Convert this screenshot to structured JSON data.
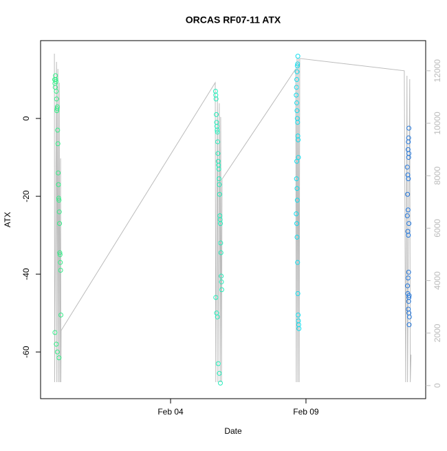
{
  "chart_data": {
    "type": "scatter",
    "title": "ORCAS RF07-11 ATX",
    "xlabel": "Date",
    "ylabel": "ATX",
    "xlim": [
      -0.8,
      13.42
    ],
    "ylim": [
      -72,
      20
    ],
    "y2lim": [
      -500,
      13150
    ],
    "xticks": [
      {
        "value": 4,
        "label": "Feb 04"
      },
      {
        "value": 9,
        "label": "Feb 09"
      }
    ],
    "yticks": [
      -60,
      -40,
      -20,
      0
    ],
    "y2ticks": [
      0,
      2000,
      4000,
      6000,
      8000,
      10000,
      12000
    ],
    "series": [
      {
        "color": "#33ee88",
        "x": [
          -0.28,
          -0.27,
          -0.26,
          -0.25,
          -0.24,
          -0.23,
          -0.22,
          -0.21,
          -0.2,
          -0.19,
          -0.18,
          -0.17,
          -0.16,
          -0.15,
          -0.14,
          -0.13,
          -0.12,
          -0.11,
          -0.1,
          -0.09,
          -0.08,
          -0.07,
          -0.06,
          -0.05,
          -0.27,
          -0.22,
          -0.18,
          -0.12
        ],
        "values": [
          10,
          9,
          8,
          11,
          10,
          9.5,
          7,
          5,
          2,
          2.5,
          3,
          -3,
          -6.5,
          -14,
          -17,
          -20.5,
          -21,
          -24,
          -27,
          -34.5,
          -35,
          -37,
          -39,
          -50.5,
          -55,
          -58,
          -60,
          -61.5
        ]
      },
      {
        "color": "#22eebb",
        "x": [
          5.66,
          5.67,
          5.68,
          5.69,
          5.7,
          5.71,
          5.72,
          5.73,
          5.74,
          5.75,
          5.76,
          5.77,
          5.78,
          5.79,
          5.8,
          5.81,
          5.82,
          5.83,
          5.84,
          5.85,
          5.86,
          5.87,
          5.88,
          5.89,
          5.67,
          5.7,
          5.73,
          5.76,
          5.8,
          5.84
        ],
        "values": [
          7,
          6,
          5,
          1,
          -1,
          -2,
          -3,
          -3.5,
          -6,
          -9,
          -11,
          -12,
          -13,
          -15.5,
          -17,
          -19.5,
          -25,
          -26,
          -27,
          -32,
          -34.5,
          -40.5,
          -42,
          -44,
          -46,
          -50,
          -51,
          -63,
          -65.5,
          -68
        ]
      },
      {
        "color": "#11ddee",
        "x": [
          8.7,
          8.69,
          8.68,
          8.67,
          8.66,
          8.65,
          8.64,
          8.66,
          8.67,
          8.68,
          8.69,
          8.7,
          8.71,
          8.72,
          8.66,
          8.65,
          8.67,
          8.68,
          8.64,
          8.66,
          8.67,
          8.69,
          8.7,
          8.71,
          8.72,
          8.73,
          8.74
        ],
        "values": [
          16,
          14,
          13.5,
          12,
          10,
          8,
          6,
          4,
          2,
          0,
          -1,
          -4.5,
          -5.5,
          -10,
          -11,
          -15.5,
          -18,
          -21,
          -24.5,
          -27,
          -30.5,
          -37,
          -45,
          -50.5,
          -52,
          -53,
          -54
        ]
      },
      {
        "color": "#2277dd",
        "x": [
          12.8,
          12.79,
          12.78,
          12.77,
          12.8,
          12.79,
          12.74,
          12.76,
          12.78,
          12.75,
          12.77,
          12.74,
          12.8,
          12.76,
          12.78,
          12.79,
          12.77,
          12.75,
          12.76,
          12.81,
          12.8,
          12.79,
          12.78,
          12.8,
          12.82,
          12.81
        ],
        "values": [
          -2.5,
          -5,
          -6,
          -8,
          -9,
          -10,
          -12.5,
          -14.5,
          -15.5,
          -19.5,
          -23.5,
          -25,
          -27,
          -29,
          -30,
          -39.5,
          -41,
          -43,
          -45,
          -45.5,
          -46,
          -47,
          -49,
          -50,
          -51,
          -53
        ]
      }
    ],
    "line": {
      "color": "#bbbbbb",
      "axis": "y2",
      "x": [
        -0.29,
        -0.28,
        -0.21,
        -0.2,
        -0.16,
        -0.14,
        -0.11,
        -0.09,
        -0.06,
        -0.05,
        -0.04,
        5.65,
        5.67,
        5.73,
        5.75,
        5.8,
        5.83,
        5.85,
        5.88,
        5.9,
        8.62,
        8.64,
        8.67,
        8.7,
        8.72,
        8.75,
        8.77,
        12.63,
        12.68,
        12.73,
        12.75,
        12.83,
        12.85,
        12.88
      ],
      "values": [
        12650,
        130,
        12340,
        130,
        12070,
        130,
        11550,
        130,
        8660,
        130,
        2100,
        11550,
        130,
        11020,
        130,
        10760,
        130,
        10240,
        130,
        7870,
        12070,
        130,
        12470,
        130,
        12470,
        130,
        12470,
        12000,
        130,
        11810,
        130,
        11680,
        130,
        1180
      ]
    }
  }
}
